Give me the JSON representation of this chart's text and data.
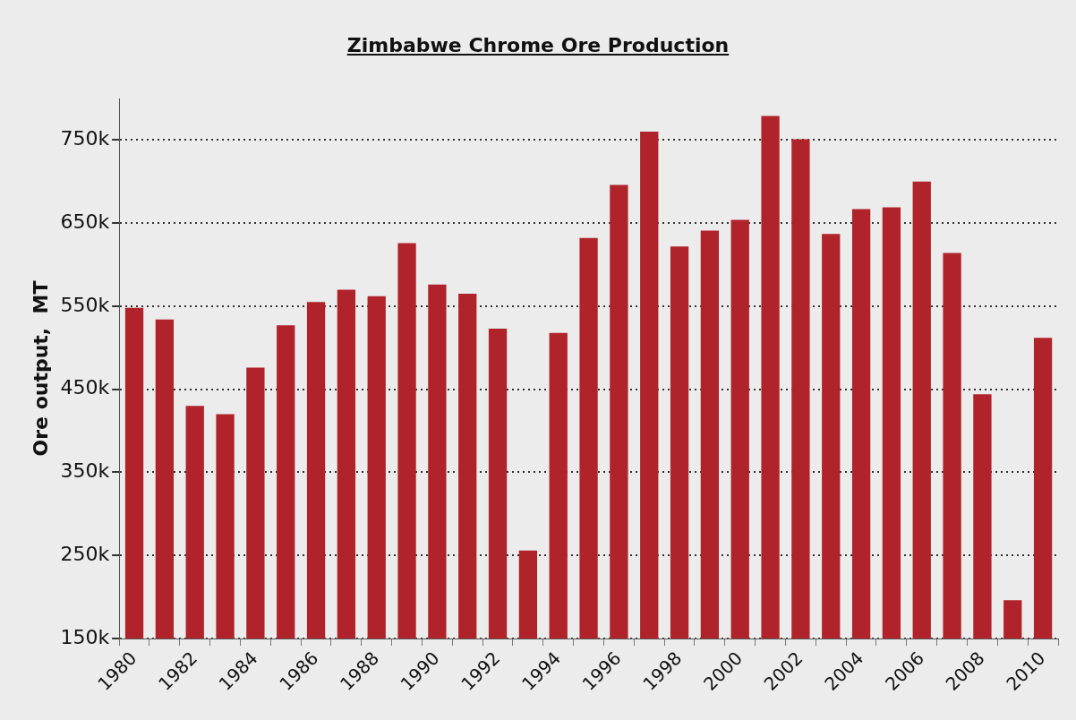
{
  "chart_data": {
    "type": "bar",
    "title": "Zimbabwe Chrome Ore Production",
    "ylabel": "Ore output,  MT",
    "categories": [
      "1980",
      null,
      "1982",
      null,
      "1984",
      null,
      "1986",
      null,
      "1988",
      null,
      "1990",
      null,
      "1992",
      null,
      "1994",
      null,
      "1996",
      null,
      "1998",
      null,
      "2000",
      null,
      "2002",
      null,
      "2004",
      null,
      "2006",
      null,
      "2008",
      null,
      "2010"
    ],
    "values": [
      548000,
      534000,
      430000,
      420000,
      476000,
      527000,
      555000,
      570000,
      562000,
      626000,
      576000,
      565000,
      523000,
      256000,
      518000,
      632000,
      696000,
      760000,
      622000,
      641000,
      654000,
      779000,
      751000,
      637000,
      667000,
      669000,
      700000,
      614000,
      444000,
      196000,
      512000
    ],
    "color": "#b0232a",
    "ylim": [
      150000,
      800000
    ],
    "yticks": [
      {
        "value": 150000,
        "label": "150k"
      },
      {
        "value": 250000,
        "label": "250k"
      },
      {
        "value": 350000,
        "label": "350k"
      },
      {
        "value": 450000,
        "label": "450k"
      },
      {
        "value": 550000,
        "label": "550k"
      },
      {
        "value": 650000,
        "label": "650k"
      },
      {
        "value": 750000,
        "label": "750k"
      }
    ],
    "grid": "y",
    "line_style": "dotted"
  }
}
